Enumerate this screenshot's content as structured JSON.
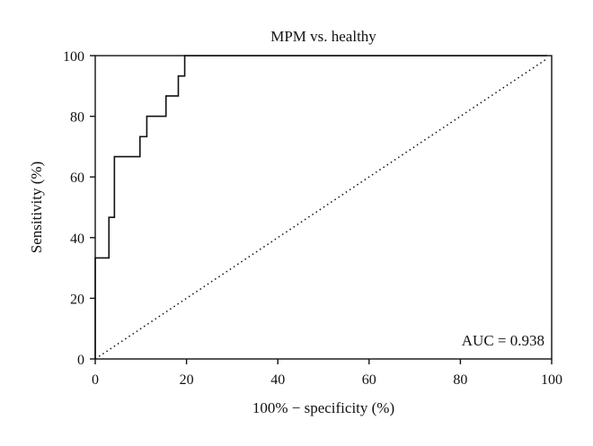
{
  "chart_data": {
    "type": "line",
    "title": "MPM vs. healthy",
    "xlabel": "100% − specificity (%)",
    "ylabel": "Sensitivity (%)",
    "xlim": [
      0,
      100
    ],
    "ylim": [
      0,
      100
    ],
    "xticks": [
      "0",
      "20",
      "40",
      "60",
      "80",
      "100"
    ],
    "yticks": [
      "0",
      "20",
      "40",
      "60",
      "80",
      "100"
    ],
    "grid": false,
    "series": [
      {
        "style": "solid-step",
        "color": "#111111",
        "x": [
          0,
          0,
          3,
          3,
          4.2,
          4.2,
          9.8,
          9.8,
          11.3,
          11.3,
          15.5,
          15.5,
          18.2,
          18.2,
          19.6,
          19.6,
          99
        ],
        "y": [
          0,
          33.3,
          33.3,
          46.7,
          46.7,
          66.7,
          66.7,
          73.3,
          73.3,
          80,
          80,
          86.7,
          86.7,
          93.3,
          93.3,
          100,
          100
        ]
      },
      {
        "style": "dotted",
        "color": "#111111",
        "x": [
          0,
          99
        ],
        "y": [
          0,
          99
        ]
      }
    ],
    "annotations": [
      {
        "text": "AUC = 0.938",
        "position": "bottom-right"
      }
    ]
  }
}
